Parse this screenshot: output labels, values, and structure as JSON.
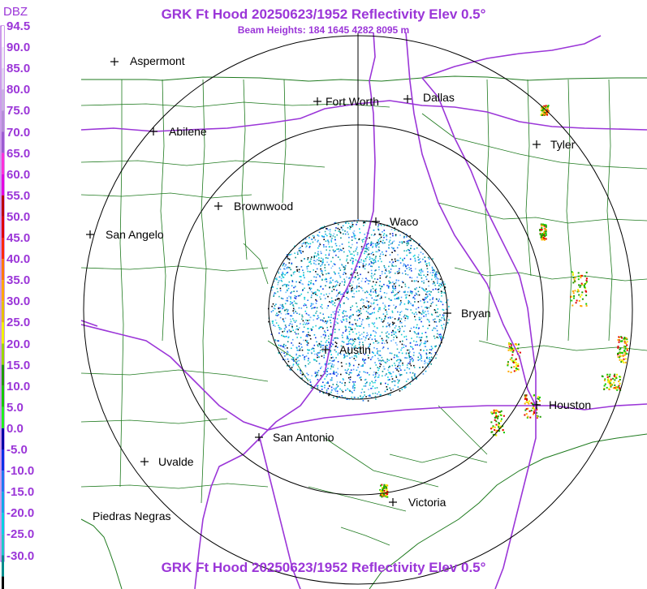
{
  "header": {
    "title": "GRK Ft Hood 20250623/1952 Reflectivity Elev 0.5°",
    "subtitle": "Beam Heights: 184 1645 4282 8095 m",
    "footer_title": "GRK Ft Hood 20250623/1952 Reflectivity Elev 0.5°"
  },
  "legend": {
    "title": "DBZ",
    "labels": [
      "94.5",
      "90.0",
      "85.0",
      "80.0",
      "75.0",
      "70.0",
      "65.0",
      "60.0",
      "55.0",
      "50.0",
      "45.0",
      "40.0",
      "35.0",
      "30.0",
      "25.0",
      "20.0",
      "15.0",
      "10.0",
      "5.0",
      "0.0",
      "-5.0",
      "-10.0",
      "-15.0",
      "-20.0",
      "-25.0",
      "-30.0"
    ],
    "colors": [
      "#fbfbfb",
      "#eeeaf4",
      "#e0d6ee",
      "#c8b3e0",
      "#b48ed6",
      "#9b5bd0",
      "#ff2fd8",
      "#e600e0",
      "#bd0000",
      "#e00000",
      "#ff2a00",
      "#ff7a00",
      "#ffa800",
      "#e6c000",
      "#f2f200",
      "#9ad600",
      "#1e9b00",
      "#15c800",
      "#22f020",
      "#0000a6",
      "#0a30e6",
      "#1e78f0",
      "#10a8e6",
      "#00d2e0",
      "#1ec8c8",
      "#008c8c",
      "#000000"
    ]
  },
  "cities": [
    {
      "name": "Aspermont"
    },
    {
      "name": "Fort Worth"
    },
    {
      "name": "Dallas"
    },
    {
      "name": "Abilene"
    },
    {
      "name": "Tyler"
    },
    {
      "name": "Brownwood"
    },
    {
      "name": "Waco"
    },
    {
      "name": "San Angelo"
    },
    {
      "name": "Bryan"
    },
    {
      "name": "Austin"
    },
    {
      "name": "Houston"
    },
    {
      "name": "San Antonio"
    },
    {
      "name": "Uvalde"
    },
    {
      "name": "Victoria"
    },
    {
      "name": "Piedras Negras"
    }
  ],
  "radar": {
    "station": "GRK",
    "site": "Ft Hood",
    "range_rings": 4
  },
  "colors": {
    "title": "#9b36d8",
    "county_lines": "#1e7a1e",
    "highways": "#9b36d8",
    "rings": "#000000"
  }
}
